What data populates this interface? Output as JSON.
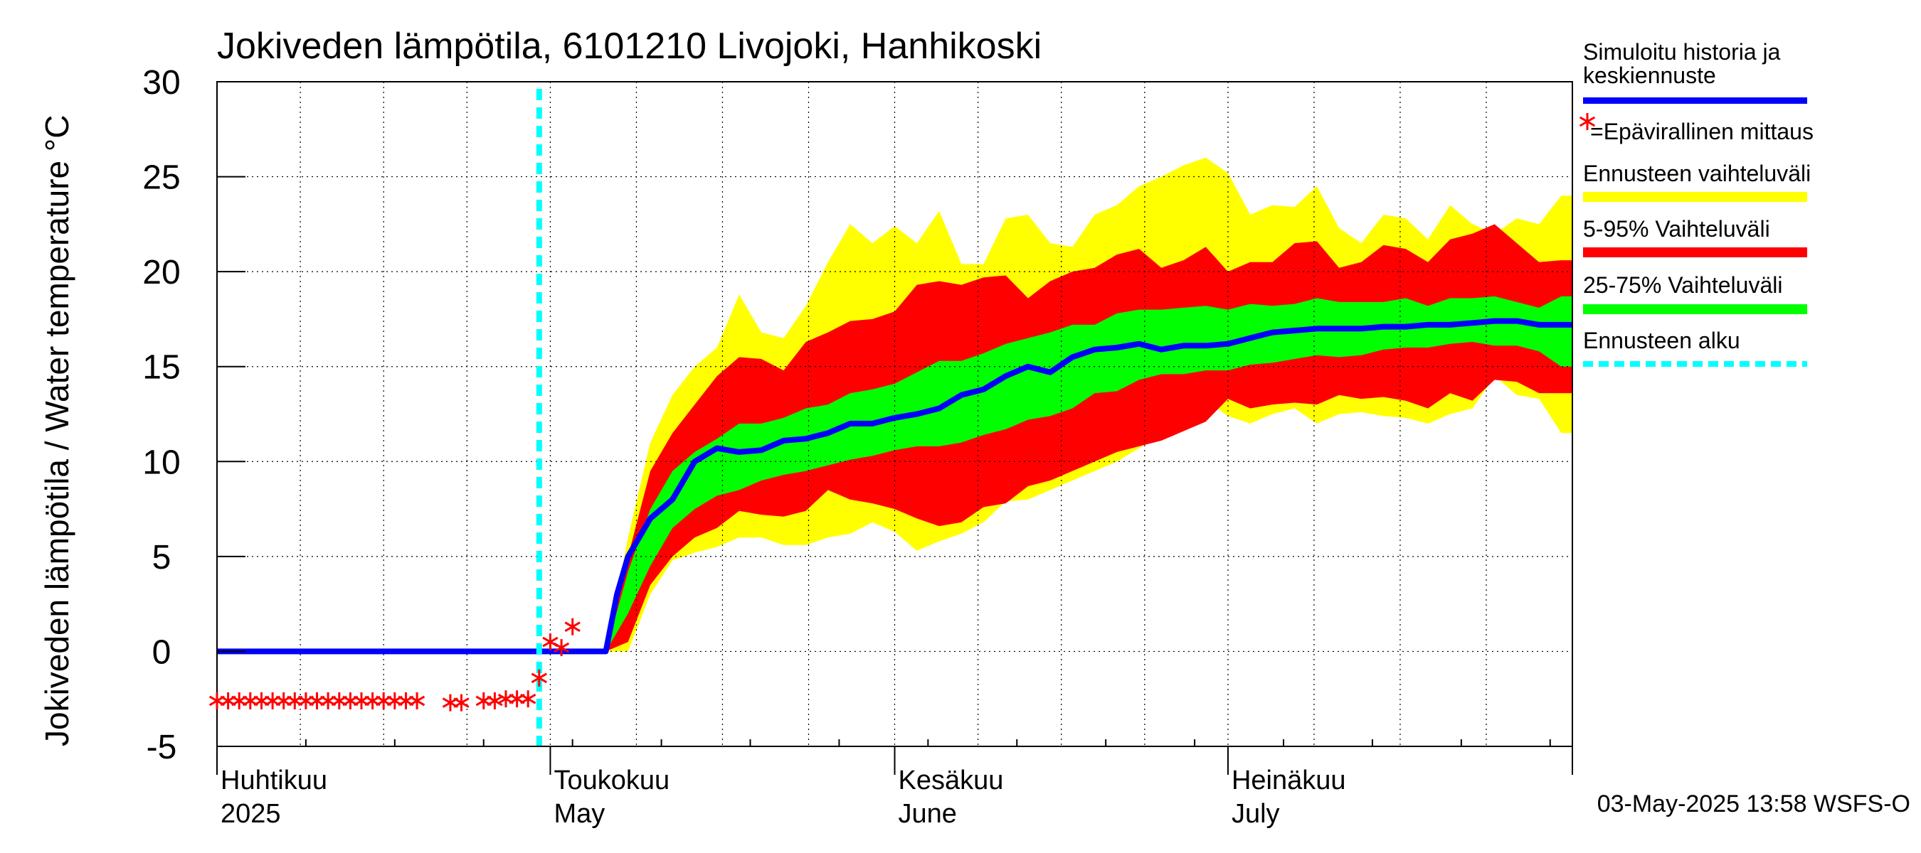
{
  "chart_data": {
    "type": "area",
    "title": "Jokiveden lämpötila, 6101210 Livojoki, Hanhikoski",
    "ylabel": "Jokiveden lämpötila / Water temperature   °C",
    "ylim": [
      -5,
      30
    ],
    "yticks": [
      -5,
      0,
      5,
      10,
      15,
      20,
      25,
      30
    ],
    "ytick_labels": [
      "-5",
      "0",
      "5",
      "10",
      "15",
      "20",
      "25",
      "30"
    ],
    "x_start": "2025-04-01",
    "x_end": "2025-08-01",
    "month_labels": [
      {
        "date": "2025-04-01",
        "fi": "Huhtikuu",
        "en": "2025"
      },
      {
        "date": "2025-05-01",
        "fi": "Toukokuu",
        "en": "May"
      },
      {
        "date": "2025-06-01",
        "fi": "Kesäkuu",
        "en": "June"
      },
      {
        "date": "2025-07-01",
        "fi": "Heinäkuu",
        "en": "July"
      }
    ],
    "forecast_start": "2025-04-30",
    "grid": true,
    "legend_position": "right",
    "timestamp": "03-May-2025 13:58 WSFS-O",
    "legend": [
      {
        "key": "sim",
        "label": "Simuloitu historia ja keskiennuste",
        "color": "#0000ff",
        "type": "line"
      },
      {
        "key": "obs",
        "label": "=Epävirallinen mittaus",
        "color": "#ff0000",
        "type": "star"
      },
      {
        "key": "full",
        "label": "Ennusteen vaihteluväli",
        "color": "#ffff00",
        "type": "band"
      },
      {
        "key": "p5_95",
        "label": "5-95% Vaihteluväli",
        "color": "#ff0000",
        "type": "band"
      },
      {
        "key": "p25_75",
        "label": "25-75% Vaihteluväli",
        "color": "#00ff00",
        "type": "band"
      },
      {
        "key": "fstart",
        "label": "Ennusteen alku",
        "color": "#00ffff",
        "type": "dashed"
      }
    ],
    "bands": {
      "x": [
        "2025-05-06",
        "2025-05-08",
        "2025-05-10",
        "2025-05-12",
        "2025-05-14",
        "2025-05-16",
        "2025-05-18",
        "2025-05-20",
        "2025-05-22",
        "2025-05-24",
        "2025-05-26",
        "2025-05-28",
        "2025-05-30",
        "2025-06-01",
        "2025-06-03",
        "2025-06-05",
        "2025-06-07",
        "2025-06-09",
        "2025-06-11",
        "2025-06-13",
        "2025-06-15",
        "2025-06-17",
        "2025-06-19",
        "2025-06-21",
        "2025-06-23",
        "2025-06-25",
        "2025-06-27",
        "2025-06-29",
        "2025-07-01",
        "2025-07-03",
        "2025-07-05",
        "2025-07-07",
        "2025-07-09",
        "2025-07-11",
        "2025-07-13",
        "2025-07-15",
        "2025-07-17",
        "2025-07-19",
        "2025-07-21",
        "2025-07-23",
        "2025-07-25",
        "2025-07-27",
        "2025-07-29",
        "2025-07-31"
      ],
      "full_upper": [
        0,
        6,
        11,
        13.5,
        15,
        16,
        18.8,
        16.8,
        16.5,
        18.2,
        20.5,
        22.5,
        21.5,
        22.4,
        21.5,
        23.2,
        20.4,
        20.4,
        22.8,
        23,
        21.5,
        21.3,
        23,
        23.5,
        24.5,
        25,
        25.6,
        26,
        25.2,
        23,
        23.5,
        23.4,
        24.5,
        22.3,
        21.5,
        23,
        22.8,
        21.7,
        23.5,
        22.5,
        22,
        22.8,
        22.5,
        24
      ],
      "p5_95_upper": [
        0,
        5,
        9.5,
        11.5,
        13,
        14.5,
        15.5,
        15.4,
        14.8,
        16.3,
        16.8,
        17.4,
        17.5,
        17.9,
        19.3,
        19.5,
        19.3,
        19.7,
        19.8,
        18.6,
        19.5,
        20,
        20.2,
        20.9,
        21.2,
        20.2,
        20.6,
        21.3,
        20,
        20.5,
        20.5,
        21.5,
        21.6,
        20.2,
        20.5,
        21.4,
        21.2,
        20.5,
        21.7,
        22,
        22.5,
        21.5,
        20.5,
        20.6
      ],
      "p25_75_upper": [
        0,
        4.2,
        7.5,
        9.5,
        10.5,
        11.2,
        12,
        12,
        12.3,
        12.8,
        13,
        13.6,
        13.8,
        14.1,
        14.7,
        15.3,
        15.3,
        15.7,
        16.2,
        16.5,
        16.8,
        17.2,
        17.2,
        17.8,
        18,
        18,
        18.1,
        18.2,
        18,
        18.3,
        18.2,
        18.3,
        18.6,
        18.4,
        18.4,
        18.4,
        18.6,
        18.2,
        18.6,
        18.6,
        18.7,
        18.4,
        18.1,
        18.7
      ],
      "p25_75_lower": [
        0,
        2,
        4.5,
        6.5,
        7.5,
        8.2,
        8.5,
        9,
        9.3,
        9.5,
        9.8,
        10.1,
        10.3,
        10.6,
        10.8,
        10.8,
        11,
        11.4,
        11.7,
        12.2,
        12.4,
        12.8,
        13.6,
        13.7,
        14.3,
        14.6,
        14.6,
        14.8,
        14.8,
        15.1,
        15.2,
        15.4,
        15.6,
        15.5,
        15.6,
        15.9,
        16,
        16,
        16.2,
        16.3,
        16.1,
        16.1,
        15.8,
        15
      ],
      "p5_95_lower": [
        0,
        0.5,
        3.5,
        5,
        6,
        6.5,
        7.4,
        7.2,
        7.1,
        7.4,
        8.5,
        8,
        7.8,
        7.5,
        7,
        6.6,
        6.8,
        7.6,
        7.8,
        8.7,
        9,
        9.5,
        10,
        10.5,
        10.8,
        11.1,
        11.6,
        12.1,
        13.3,
        12.8,
        13,
        13.1,
        13,
        13.5,
        13.3,
        13.4,
        13.2,
        12.8,
        13.6,
        13.2,
        14.3,
        14.2,
        13.6,
        13.6
      ],
      "full_lower": [
        0,
        0,
        3,
        4.8,
        5.2,
        5.5,
        6,
        6,
        5.6,
        5.6,
        6,
        6.2,
        6.8,
        6.3,
        5.3,
        5.8,
        6.2,
        6.8,
        7.9,
        8,
        8.5,
        9,
        9.5,
        10,
        10.7,
        11.5,
        12.5,
        13.2,
        12.4,
        12,
        12.5,
        12.8,
        12,
        12.5,
        12.6,
        12.4,
        12.3,
        12,
        12.5,
        12.8,
        14.5,
        13.5,
        13.3,
        11.5
      ]
    },
    "series": [
      {
        "name": "Simuloitu historia ja keskiennuste",
        "x": [
          "2025-04-01",
          "2025-04-30",
          "2025-05-06",
          "2025-05-07",
          "2025-05-08",
          "2025-05-10",
          "2025-05-12",
          "2025-05-14",
          "2025-05-16",
          "2025-05-18",
          "2025-05-20",
          "2025-05-22",
          "2025-05-24",
          "2025-05-26",
          "2025-05-28",
          "2025-05-30",
          "2025-06-01",
          "2025-06-03",
          "2025-06-05",
          "2025-06-07",
          "2025-06-09",
          "2025-06-11",
          "2025-06-13",
          "2025-06-15",
          "2025-06-17",
          "2025-06-19",
          "2025-06-21",
          "2025-06-23",
          "2025-06-25",
          "2025-06-27",
          "2025-06-29",
          "2025-07-01",
          "2025-07-03",
          "2025-07-05",
          "2025-07-07",
          "2025-07-09",
          "2025-07-11",
          "2025-07-13",
          "2025-07-15",
          "2025-07-17",
          "2025-07-19",
          "2025-07-21",
          "2025-07-23",
          "2025-07-25",
          "2025-07-27",
          "2025-07-29",
          "2025-07-31"
        ],
        "values": [
          0,
          0,
          0,
          3,
          5,
          7,
          8,
          10,
          10.7,
          10.5,
          10.6,
          11.1,
          11.2,
          11.5,
          12,
          12,
          12.3,
          12.5,
          12.8,
          13.5,
          13.8,
          14.5,
          15,
          14.7,
          15.5,
          15.9,
          16,
          16.2,
          15.9,
          16.1,
          16.1,
          16.2,
          16.5,
          16.8,
          16.9,
          17,
          17,
          17,
          17.1,
          17.1,
          17.2,
          17.2,
          17.3,
          17.4,
          17.4,
          17.2,
          17.2
        ]
      },
      {
        "name": "=Epävirallinen mittaus",
        "x": [
          "2025-04-01",
          "2025-04-02",
          "2025-04-03",
          "2025-04-04",
          "2025-04-05",
          "2025-04-06",
          "2025-04-07",
          "2025-04-08",
          "2025-04-09",
          "2025-04-10",
          "2025-04-11",
          "2025-04-12",
          "2025-04-13",
          "2025-04-14",
          "2025-04-15",
          "2025-04-16",
          "2025-04-17",
          "2025-04-18",
          "2025-04-19",
          "2025-04-22",
          "2025-04-23",
          "2025-04-25",
          "2025-04-26",
          "2025-04-27",
          "2025-04-28",
          "2025-04-29",
          "2025-04-30",
          "2025-05-01",
          "2025-05-02",
          "2025-05-03"
        ],
        "values": [
          -2.6,
          -2.6,
          -2.6,
          -2.6,
          -2.6,
          -2.6,
          -2.6,
          -2.6,
          -2.6,
          -2.6,
          -2.6,
          -2.6,
          -2.6,
          -2.6,
          -2.6,
          -2.6,
          -2.6,
          -2.6,
          -2.6,
          -2.7,
          -2.7,
          -2.6,
          -2.6,
          -2.5,
          -2.5,
          -2.5,
          -1.4,
          0.5,
          0.2,
          1.3
        ]
      }
    ]
  }
}
